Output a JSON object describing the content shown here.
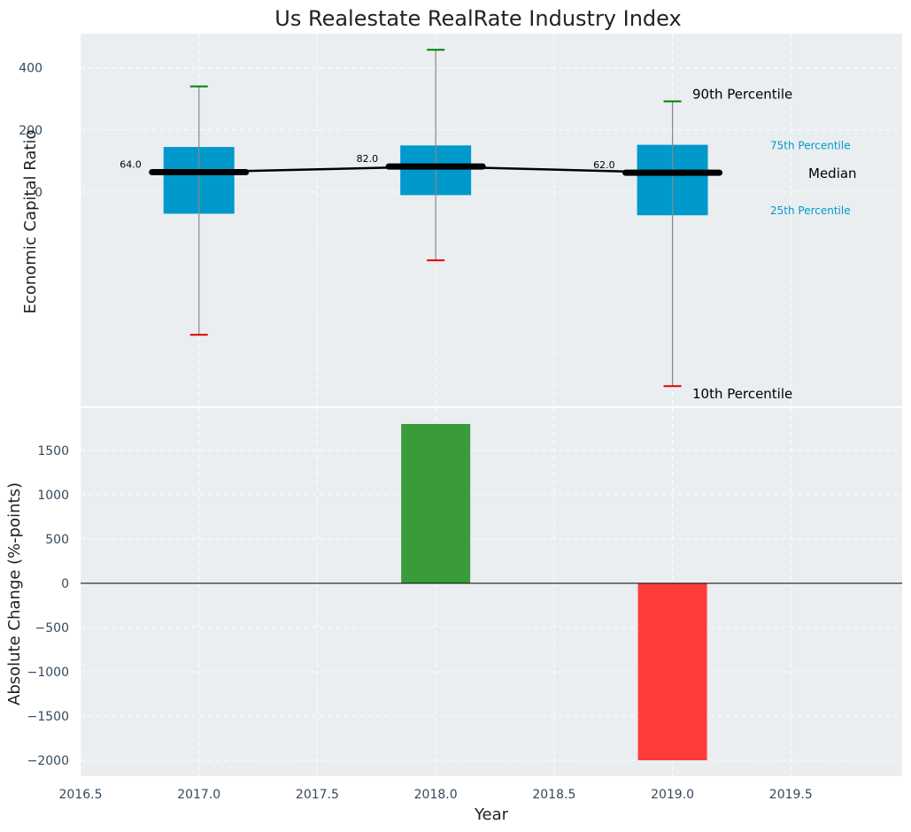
{
  "colors": {
    "panel_bg": "#eaeef0",
    "box": "#0099cc",
    "whisker_line": "#888888",
    "p90_cap": "#008000",
    "p10_cap": "#e00000",
    "median": "#000000",
    "bar_up": "#3a9b3a",
    "bar_down": "#ff3b3b",
    "axis_text": "#34495e",
    "legend_quartile": "#0099cc"
  },
  "chart_data": {
    "title": "Us Realestate RealRate Industry Index",
    "xlabel": "Year",
    "xlim": [
      2016.5,
      2019.97
    ],
    "x_ticks": [
      "2016.5",
      "2017.0",
      "2017.5",
      "2018.0",
      "2018.5",
      "2019.0",
      "2019.5"
    ],
    "panels": [
      {
        "type": "box",
        "ylabel": "Economic Capital Ratio",
        "ylim": [
          -690,
          510
        ],
        "y_ticks": [
          "400",
          "200",
          "0"
        ],
        "series": [
          {
            "year": 2017,
            "p10": -460,
            "p25": -70,
            "median": 64.0,
            "p75": 145,
            "p90": 340,
            "label": "64.0"
          },
          {
            "year": 2018,
            "p10": -220,
            "p25": -10,
            "median": 82.0,
            "p75": 150,
            "p90": 458,
            "label": "82.0"
          },
          {
            "year": 2019,
            "p10": -625,
            "p25": -75,
            "median": 62.0,
            "p75": 152,
            "p90": 292,
            "label": "62.0"
          }
        ],
        "legend": {
          "p90": "90th Percentile",
          "p75": "75th Percentile",
          "median": "Median",
          "p25": "25th Percentile",
          "p10": "10th Percentile"
        }
      },
      {
        "type": "bar",
        "ylabel": "Absolute Change (%-points)",
        "ylim": [
          -2180,
          1980
        ],
        "y_ticks": [
          "1500",
          "1000",
          "500",
          "0",
          "−500",
          "−1000",
          "−1500",
          "−2000"
        ],
        "bars": [
          {
            "year": 2018,
            "value": 1800
          },
          {
            "year": 2019,
            "value": -2000
          }
        ]
      }
    ]
  }
}
